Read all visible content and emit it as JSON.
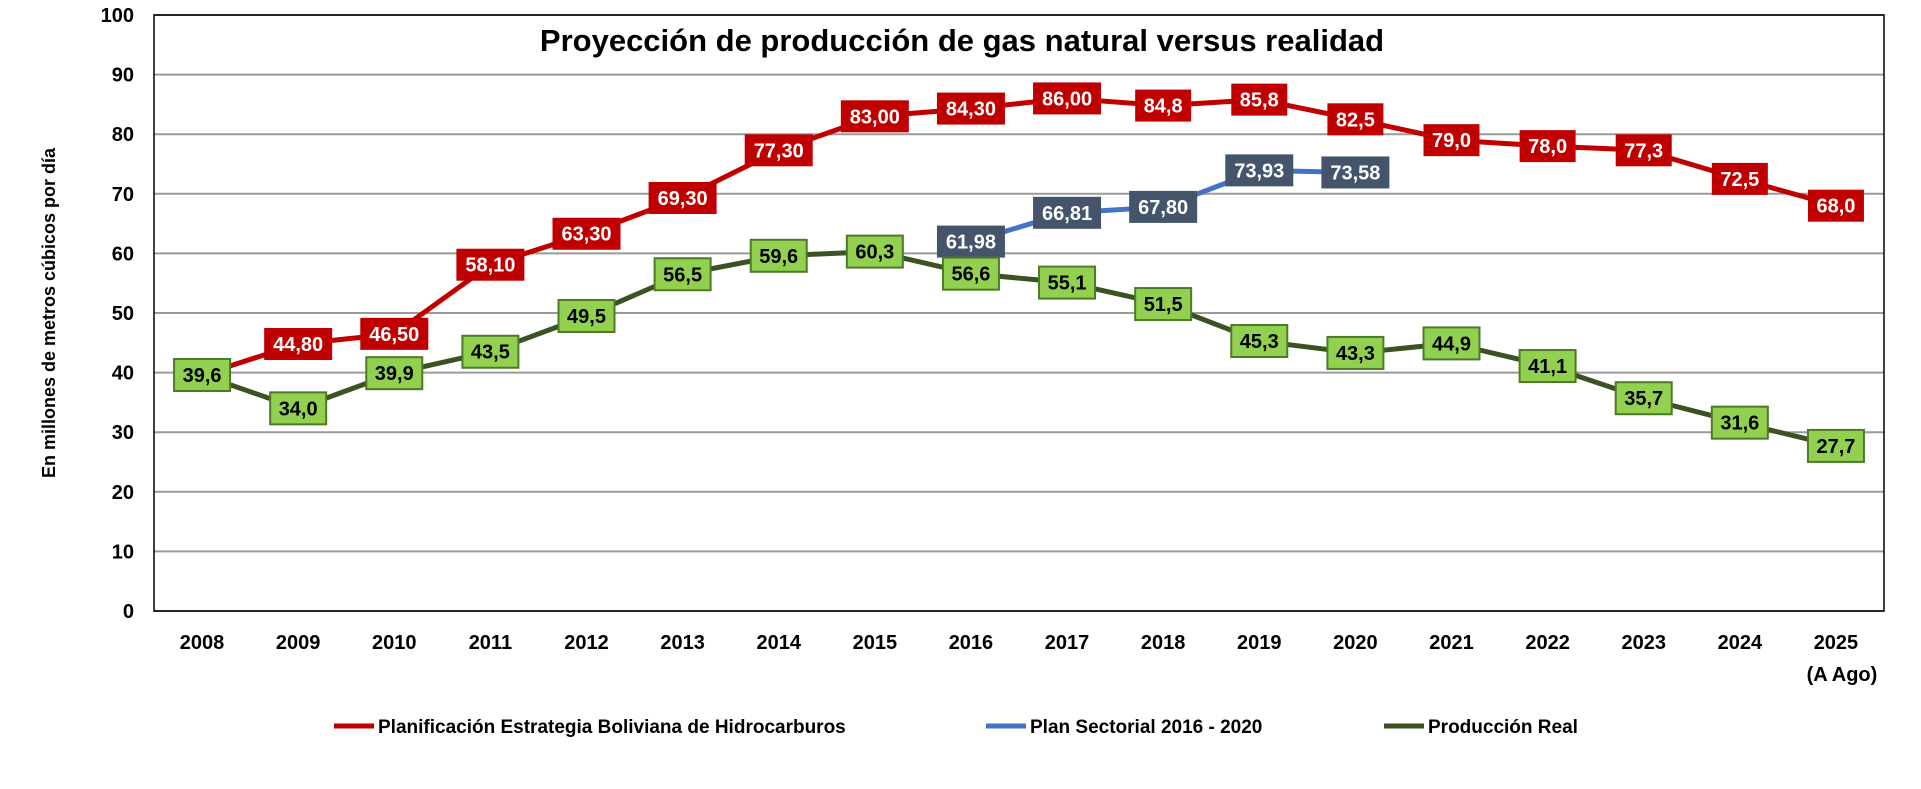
{
  "chart_data": {
    "type": "line",
    "title": "Proyección de producción de gas natural versus realidad",
    "ylabel": "En millones de metros cúbicos por día",
    "xlabel": "",
    "ylim": [
      0,
      100
    ],
    "yticks": [
      "0",
      "10",
      "20",
      "30",
      "40",
      "50",
      "60",
      "70",
      "80",
      "90",
      "100"
    ],
    "grid": true,
    "legend_position": "bottom",
    "categories": [
      "2008",
      "2009",
      "2010",
      "2011",
      "2012",
      "2013",
      "2014",
      "2015",
      "2016",
      "2017",
      "2018",
      "2019",
      "2020",
      "2021",
      "2022",
      "2023",
      "2024",
      "2025"
    ],
    "category_sublabels": {
      "2025": "(A Ago)"
    },
    "series": [
      {
        "name": "Planificación Estrategia Boliviana de Hidrocarburos",
        "color": "#C00000",
        "label_bg": "#C00000",
        "label_color": "#FFFFFF",
        "values": [
          39.6,
          44.8,
          46.5,
          58.1,
          63.3,
          69.3,
          77.3,
          83.0,
          84.3,
          86.0,
          84.8,
          85.8,
          82.5,
          79.0,
          78.0,
          77.3,
          72.5,
          68.0
        ],
        "labels": [
          null,
          "44,80",
          "46,50",
          "58,10",
          "63,30",
          "69,30",
          "77,30",
          "83,00",
          "84,30",
          "86,00",
          "84,8",
          "85,8",
          "82,5",
          "79,0",
          "78,0",
          "77,3",
          "72,5",
          "68,0"
        ]
      },
      {
        "name": "Plan Sectorial 2016 - 2020",
        "color": "#4472C4",
        "label_bg": "#44546A",
        "label_color": "#FFFFFF",
        "values": [
          null,
          null,
          null,
          null,
          null,
          null,
          null,
          null,
          61.98,
          66.81,
          67.8,
          73.93,
          73.58,
          null,
          null,
          null,
          null,
          null
        ],
        "labels": [
          null,
          null,
          null,
          null,
          null,
          null,
          null,
          null,
          "61,98",
          "66,81",
          "67,80",
          "73,93",
          "73,58",
          null,
          null,
          null,
          null,
          null
        ]
      },
      {
        "name": "Producción Real",
        "color": "#3B5323",
        "label_bg": "#92D050",
        "label_border": "#4E7A27",
        "label_color": "#000000",
        "values": [
          39.6,
          34.0,
          39.9,
          43.5,
          49.5,
          56.5,
          59.6,
          60.3,
          56.6,
          55.1,
          51.5,
          45.3,
          43.3,
          44.9,
          41.1,
          35.7,
          31.6,
          27.7
        ],
        "labels": [
          "39,6",
          "34,0",
          "39,9",
          "43,5",
          "49,5",
          "56,5",
          "59,6",
          "60,3",
          "56,6",
          "55,1",
          "51,5",
          "45,3",
          "43,3",
          "44,9",
          "41,1",
          "35,7",
          "31,6",
          "27,7"
        ]
      }
    ]
  }
}
